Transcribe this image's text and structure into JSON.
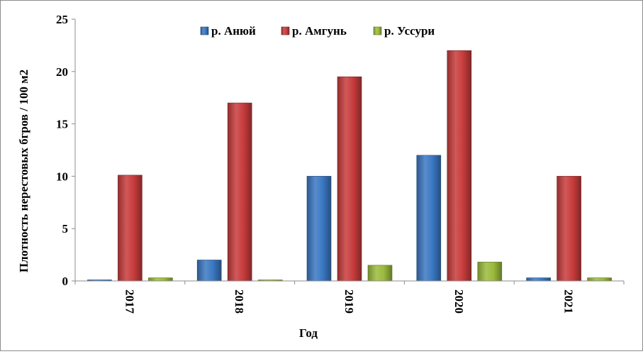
{
  "chart_data": {
    "type": "bar",
    "categories": [
      "2017",
      "2018",
      "2019",
      "2020",
      "2021"
    ],
    "series": [
      {
        "name": "р. Анюй",
        "values": [
          0.1,
          2.0,
          10.0,
          12.0,
          0.3
        ],
        "color": "#3a78c3"
      },
      {
        "name": "р. Амгунь",
        "values": [
          10.1,
          17.0,
          19.5,
          22.0,
          10.0
        ],
        "color": "#c83c3c"
      },
      {
        "name": "р. Уссури",
        "values": [
          0.3,
          0.1,
          1.5,
          1.8,
          0.3
        ],
        "color": "#9bbb3c"
      }
    ],
    "title": "",
    "xlabel": "Год",
    "ylabel": "Плотность нерестовых бгров / 100 м2",
    "ylim": [
      0,
      25
    ],
    "yticks": [
      0,
      5,
      10,
      15,
      20,
      25
    ],
    "grid": false,
    "legend": "top-center"
  }
}
